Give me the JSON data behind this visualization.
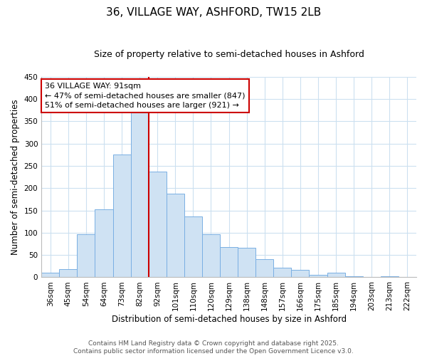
{
  "title": "36, VILLAGE WAY, ASHFORD, TW15 2LB",
  "subtitle": "Size of property relative to semi-detached houses in Ashford",
  "xlabel": "Distribution of semi-detached houses by size in Ashford",
  "ylabel": "Number of semi-detached properties",
  "categories": [
    "36sqm",
    "45sqm",
    "54sqm",
    "64sqm",
    "73sqm",
    "82sqm",
    "92sqm",
    "101sqm",
    "110sqm",
    "120sqm",
    "129sqm",
    "138sqm",
    "148sqm",
    "157sqm",
    "166sqm",
    "175sqm",
    "185sqm",
    "194sqm",
    "203sqm",
    "213sqm",
    "222sqm"
  ],
  "values": [
    10,
    18,
    97,
    153,
    275,
    370,
    237,
    188,
    136,
    96,
    68,
    67,
    40,
    22,
    17,
    5,
    10,
    3,
    0,
    3,
    0
  ],
  "bar_color": "#cfe2f3",
  "bar_edge_color": "#7aafe3",
  "vline_color": "#cc0000",
  "annotation_text_line1": "36 VILLAGE WAY: 91sqm",
  "annotation_text_line2": "← 47% of semi-detached houses are smaller (847)",
  "annotation_text_line3": "51% of semi-detached houses are larger (921) →",
  "annotation_box_color": "#ffffff",
  "annotation_box_edge": "#cc0000",
  "ylim": [
    0,
    450
  ],
  "yticks": [
    0,
    50,
    100,
    150,
    200,
    250,
    300,
    350,
    400,
    450
  ],
  "footer1": "Contains HM Land Registry data © Crown copyright and database right 2025.",
  "footer2": "Contains public sector information licensed under the Open Government Licence v3.0.",
  "background_color": "#ffffff",
  "grid_color": "#cce0f0",
  "title_fontsize": 11,
  "subtitle_fontsize": 9,
  "axis_label_fontsize": 8.5,
  "tick_fontsize": 7.5,
  "annotation_fontsize": 8,
  "footer_fontsize": 6.5
}
